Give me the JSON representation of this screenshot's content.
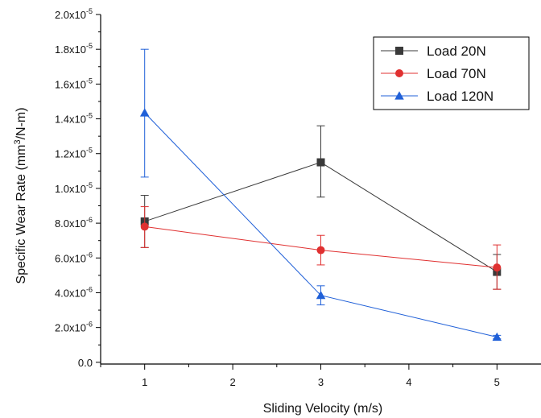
{
  "chart_data": {
    "type": "line",
    "title": "",
    "xlabel": "Sliding Velocity (m/s)",
    "ylabel": "Specific Wear Rate (mm³/N-m)",
    "xlim": [
      0.5,
      5.5
    ],
    "ylim": [
      -1e-07,
      2e-05
    ],
    "x_ticks": [
      1,
      2,
      3,
      4,
      5
    ],
    "y_ticks": [
      {
        "value": 0,
        "mantissa": "0.0",
        "exponent": ""
      },
      {
        "value": 2e-06,
        "mantissa": "2.0x10",
        "exponent": "-6"
      },
      {
        "value": 4e-06,
        "mantissa": "4.0x10",
        "exponent": "-6"
      },
      {
        "value": 6e-06,
        "mantissa": "6.0x10",
        "exponent": "-6"
      },
      {
        "value": 8e-06,
        "mantissa": "8.0x10",
        "exponent": "-6"
      },
      {
        "value": 1e-05,
        "mantissa": "1.0x10",
        "exponent": "-5"
      },
      {
        "value": 1.2e-05,
        "mantissa": "1.2x10",
        "exponent": "-5"
      },
      {
        "value": 1.4e-05,
        "mantissa": "1.4x10",
        "exponent": "-5"
      },
      {
        "value": 1.6e-05,
        "mantissa": "1.6x10",
        "exponent": "-5"
      },
      {
        "value": 1.8e-05,
        "mantissa": "1.8x10",
        "exponent": "-5"
      },
      {
        "value": 2e-05,
        "mantissa": "2.0x10",
        "exponent": "-5"
      }
    ],
    "grid": false,
    "legend_position": "top-right",
    "series": [
      {
        "name": "Load 20N",
        "color": "#3a3a3a",
        "marker": "square",
        "x": [
          1,
          3,
          5
        ],
        "y": [
          8.1e-06,
          1.15e-05,
          5.2e-06
        ],
        "yerr_low": [
          6.6e-06,
          9.5e-06,
          4.2e-06
        ],
        "yerr_high": [
          9.6e-06,
          1.36e-05,
          6.2e-06
        ]
      },
      {
        "name": "Load 70N",
        "color": "#e03030",
        "marker": "circle",
        "x": [
          1,
          3,
          5
        ],
        "y": [
          7.8e-06,
          6.45e-06,
          5.45e-06
        ],
        "yerr_low": [
          6.6e-06,
          5.6e-06,
          4.2e-06
        ],
        "yerr_high": [
          8.95e-06,
          7.3e-06,
          6.75e-06
        ]
      },
      {
        "name": "Load 120N",
        "color": "#2060d8",
        "marker": "triangle",
        "x": [
          1,
          3,
          5
        ],
        "y": [
          1.435e-05,
          3.85e-06,
          1.45e-06
        ],
        "yerr_low": [
          1.065e-05,
          3.3e-06,
          1.35e-06
        ],
        "yerr_high": [
          1.8e-05,
          4.4e-06,
          1.55e-06
        ]
      }
    ]
  }
}
